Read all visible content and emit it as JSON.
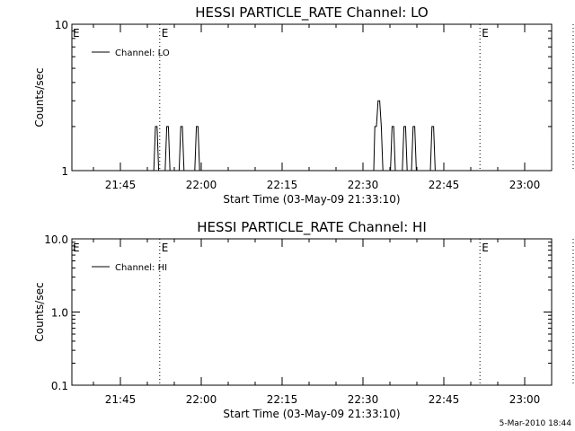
{
  "timestamp": "5-Mar-2010 18:44",
  "chart_data": [
    {
      "type": "line",
      "title": "HESSI PARTICLE_RATE Channel: LO",
      "xlabel": "Start Time (03-May-09 21:33:10)",
      "ylabel": "Counts/sec",
      "yscale": "log",
      "ylim": [
        1,
        10
      ],
      "yticks": [
        "1",
        "10"
      ],
      "xlim_min": [
        36.0,
        125.0
      ],
      "xticks": [
        {
          "min": 45,
          "label": "21:45"
        },
        {
          "min": 60,
          "label": "22:00"
        },
        {
          "min": 75,
          "label": "22:15"
        },
        {
          "min": 90,
          "label": "22:30"
        },
        {
          "min": 105,
          "label": "22:45"
        },
        {
          "min": 120,
          "label": "23:00"
        }
      ],
      "event_lines": [
        {
          "min": 52.3,
          "label": "E"
        },
        {
          "min": 111.7,
          "label": "E"
        },
        {
          "min": 129.0,
          "label": ""
        }
      ],
      "start_marker": "E",
      "legend": "Channel: LO",
      "grid": false,
      "series": [
        {
          "name": "Channel: LO",
          "x": [
            51.2,
            51.5,
            51.8,
            52.1,
            53.3,
            53.6,
            53.9,
            54.2,
            54.5,
            55.9,
            56.2,
            56.5,
            56.8,
            58.8,
            59.1,
            59.4,
            59.7,
            92.0,
            92.2,
            92.5,
            92.8,
            93.1,
            93.4,
            93.7,
            94.0,
            95.1,
            95.4,
            95.7,
            96.0,
            97.3,
            97.6,
            97.9,
            98.2,
            99.0,
            99.3,
            99.6,
            99.9,
            100.2,
            100.5,
            102.5,
            102.8,
            103.1,
            103.4
          ],
          "y": [
            1,
            2,
            2,
            1,
            1,
            2,
            2,
            1,
            1,
            1,
            2,
            2,
            1,
            1,
            2,
            2,
            1,
            1,
            2,
            2,
            3,
            3,
            2,
            1,
            1,
            1,
            2,
            2,
            1,
            1,
            2,
            2,
            1,
            1,
            2,
            2,
            1,
            1,
            1,
            1,
            2,
            2,
            1
          ]
        }
      ]
    },
    {
      "type": "line",
      "title": "HESSI PARTICLE_RATE Channel: HI",
      "xlabel": "Start Time (03-May-09 21:33:10)",
      "ylabel": "Counts/sec",
      "yscale": "log",
      "ylim": [
        0.1,
        10
      ],
      "yticks": [
        "0.1",
        "1.0",
        "10.0"
      ],
      "xlim_min": [
        36.0,
        125.0
      ],
      "xticks": [
        {
          "min": 45,
          "label": "21:45"
        },
        {
          "min": 60,
          "label": "22:00"
        },
        {
          "min": 75,
          "label": "22:15"
        },
        {
          "min": 90,
          "label": "22:30"
        },
        {
          "min": 105,
          "label": "22:45"
        },
        {
          "min": 120,
          "label": "23:00"
        }
      ],
      "event_lines": [
        {
          "min": 52.3,
          "label": "E"
        },
        {
          "min": 111.7,
          "label": "E"
        },
        {
          "min": 129.0,
          "label": ""
        }
      ],
      "start_marker": "E",
      "legend": "Channel: HI",
      "grid": false,
      "series": [
        {
          "name": "Channel: HI",
          "x": [],
          "y": []
        }
      ]
    }
  ]
}
